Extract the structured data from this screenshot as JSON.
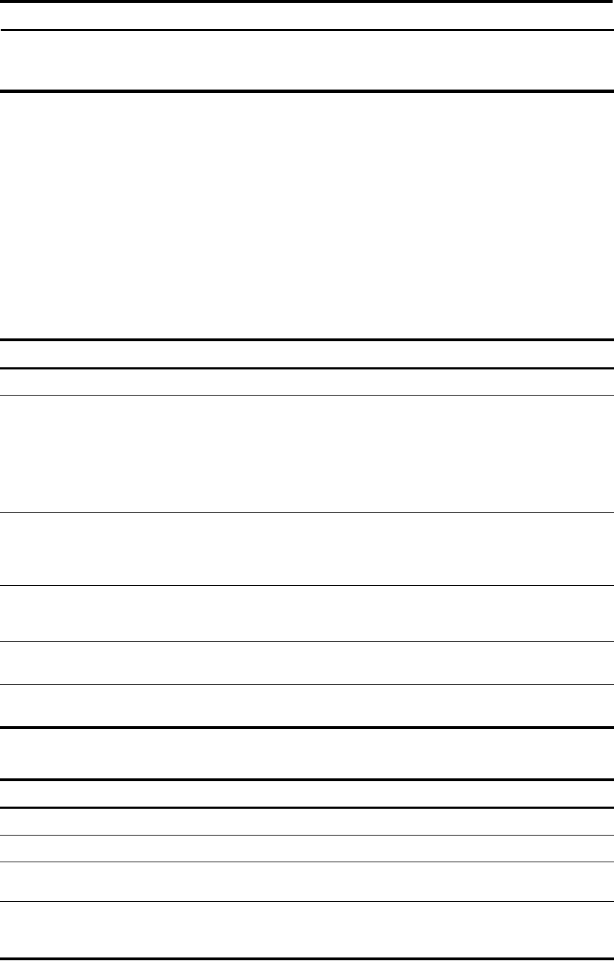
{
  "document": {
    "tables": [
      {
        "rows": []
      },
      {
        "rows": []
      },
      {
        "rows": []
      }
    ]
  },
  "colors": {
    "rule": "#000000",
    "background": "#ffffff"
  }
}
